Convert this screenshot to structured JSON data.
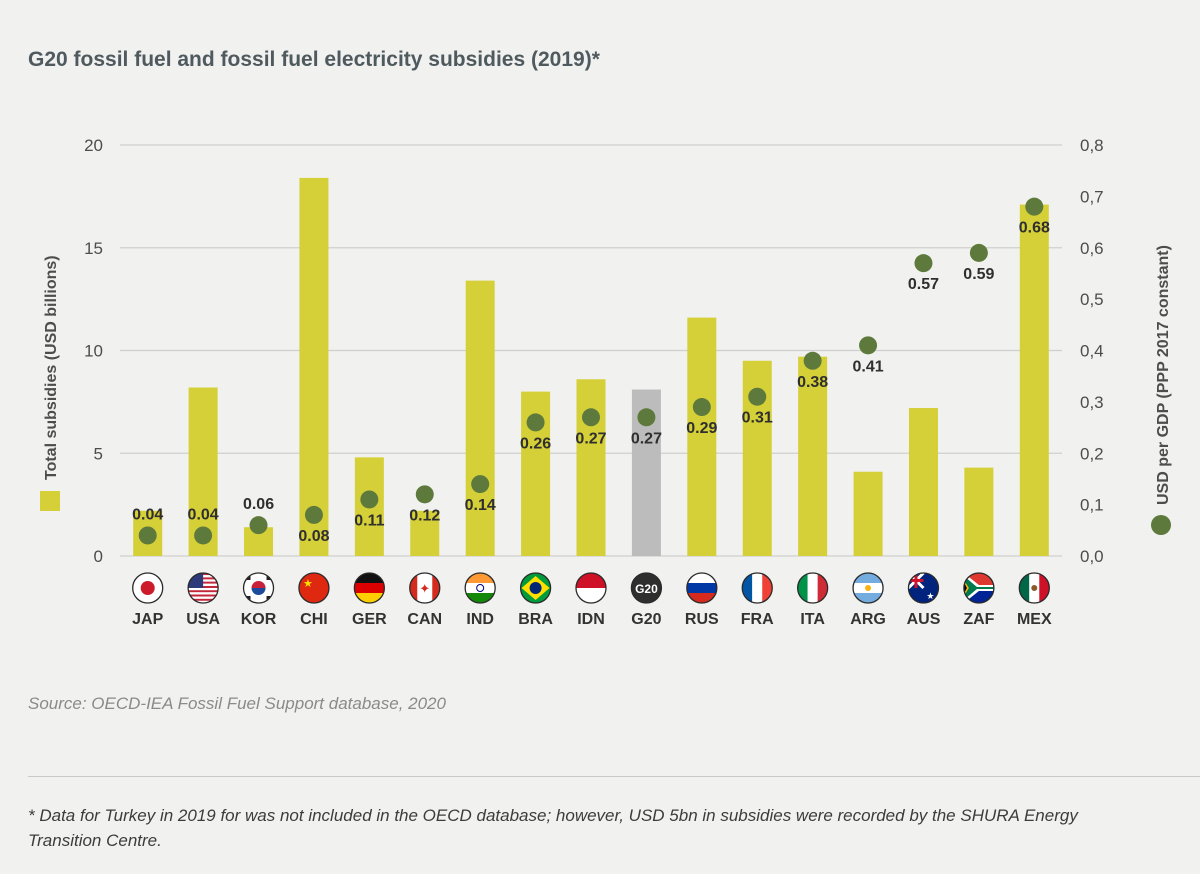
{
  "title": "G20 fossil fuel and fossil fuel electricity subsidies (2019)*",
  "source": "Source: OECD-IEA Fossil Fuel Support database, 2020",
  "footnote": "* Data for Turkey in 2019 for was not included in the OECD database; however, USD 5bn in subsidies were recorded by the SHURA Energy Transition Centre.",
  "colors": {
    "bar": "#d5cf38",
    "g20_bar": "#bcbcbc",
    "dot": "#5d7a3c",
    "grid": "#cfcfcf"
  },
  "chart_data": {
    "type": "bar",
    "categories": [
      "JAP",
      "USA",
      "KOR",
      "CHI",
      "GER",
      "CAN",
      "IND",
      "BRA",
      "IDN",
      "G20",
      "RUS",
      "FRA",
      "ITA",
      "ARG",
      "AUS",
      "ZAF",
      "MEX"
    ],
    "country_flags": [
      "japan-flag",
      "usa-flag",
      "korea-flag",
      "china-flag",
      "germany-flag",
      "canada-flag",
      "india-flag",
      "brazil-flag",
      "indonesia-flag",
      "g20-badge",
      "russia-flag",
      "france-flag",
      "italy-flag",
      "argentina-flag",
      "australia-flag",
      "south-africa-flag",
      "mexico-flag"
    ],
    "g20_badge_text": "G20",
    "series": [
      {
        "name": "Total subsidies (USD billions)",
        "axis": "left",
        "kind": "bar",
        "values": [
          2.2,
          8.2,
          1.4,
          18.4,
          4.8,
          2.2,
          13.4,
          8.0,
          8.6,
          8.1,
          11.6,
          9.5,
          9.7,
          4.1,
          7.2,
          4.3,
          17.1
        ]
      },
      {
        "name": "USD per GDP (PPP 2017 constant)",
        "axis": "right",
        "kind": "scatter",
        "values": [
          0.04,
          0.04,
          0.06,
          0.08,
          0.11,
          0.12,
          0.14,
          0.26,
          0.27,
          0.27,
          0.29,
          0.31,
          0.38,
          0.41,
          0.57,
          0.59,
          0.68
        ],
        "labels": [
          "0.04",
          "0.04",
          "0.06",
          "0.08",
          "0.11",
          "0.12",
          "0.14",
          "0.26",
          "0.27",
          "0.27",
          "0.29",
          "0.31",
          "0.38",
          "0.41",
          "0.57",
          "0.59",
          "0.68"
        ]
      }
    ],
    "y_left": {
      "label": "Total subsidies (USD billions)",
      "ylim": [
        0,
        20
      ],
      "ticks": [
        "0",
        "5",
        "10",
        "15",
        "20"
      ]
    },
    "y_right": {
      "label": "USD per GDP (PPP 2017 constant)",
      "ylim": [
        0,
        0.8
      ],
      "ticks": [
        "0,0",
        "0,1",
        "0,2",
        "0,3",
        "0,4",
        "0,5",
        "0,6",
        "0,7",
        "0,8"
      ]
    },
    "grid": true,
    "legend_placement": "along each y-axis"
  }
}
